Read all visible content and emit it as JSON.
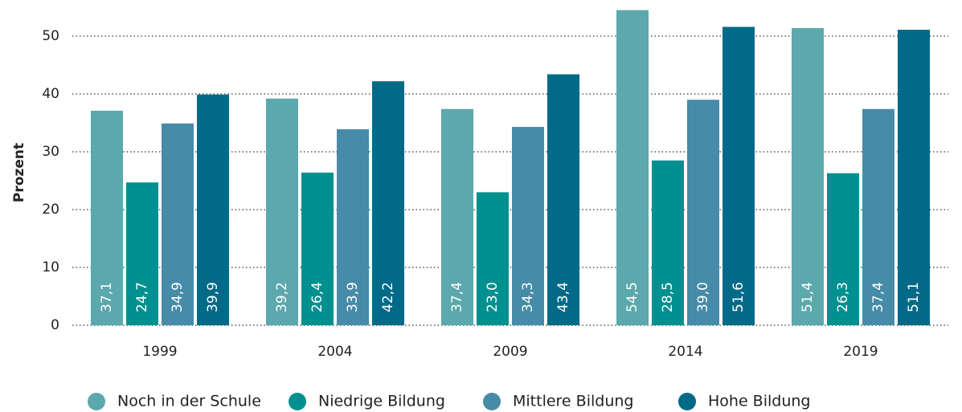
{
  "chart_data": {
    "type": "bar",
    "ylabel": "Prozent",
    "categories": [
      "1999",
      "2004",
      "2009",
      "2014",
      "2019"
    ],
    "series": [
      {
        "name": "Noch in der Schule",
        "color": "#5ba8ad",
        "values": [
          37.1,
          39.2,
          37.4,
          54.5,
          51.4
        ],
        "value_labels": [
          "37,1",
          "39,2",
          "37,4",
          "54,5",
          "51,4"
        ]
      },
      {
        "name": "Niedrige Bildung",
        "color": "#00908f",
        "values": [
          24.7,
          26.4,
          23.0,
          28.5,
          26.3
        ],
        "value_labels": [
          "24,7",
          "26,4",
          "23,0",
          "28,5",
          "26,3"
        ]
      },
      {
        "name": "Mittlere Bildung",
        "color": "#468ba8",
        "values": [
          34.9,
          33.9,
          34.3,
          39.0,
          37.4
        ],
        "value_labels": [
          "34,9",
          "33,9",
          "34,3",
          "39,0",
          "37,4"
        ]
      },
      {
        "name": "Hohe Bildung",
        "color": "#006a88",
        "values": [
          39.9,
          42.2,
          43.4,
          51.6,
          51.1
        ],
        "value_labels": [
          "39,9",
          "42,2",
          "43,4",
          "51,6",
          "51,1"
        ]
      }
    ],
    "ylim": [
      0,
      50
    ],
    "yticks": [
      0,
      10,
      20,
      30,
      40,
      50
    ],
    "grid": true,
    "legend": "bottom"
  }
}
